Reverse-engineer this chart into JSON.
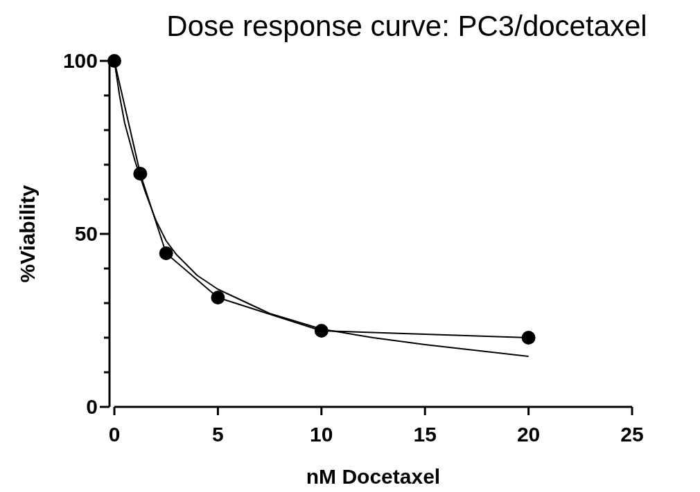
{
  "chart_data": {
    "type": "line",
    "title": "Dose response curve: PC3/docetaxel",
    "xlabel": "nM Docetaxel",
    "ylabel": "%Viability",
    "xlim": [
      0,
      25
    ],
    "xticks": [
      0,
      5,
      10,
      15,
      20,
      25
    ],
    "ylim": [
      0,
      100
    ],
    "yticks": [
      0,
      {
        "value": 10,
        "label": null
      },
      {
        "value": 20,
        "label": null
      },
      {
        "value": 30,
        "label": null
      },
      {
        "value": 40,
        "label": null
      },
      50,
      {
        "value": 60,
        "label": null
      },
      {
        "value": 70,
        "label": null
      },
      {
        "value": 80,
        "label": null
      },
      {
        "value": 90,
        "label": null
      },
      100
    ],
    "grid": false,
    "series": [
      {
        "color": "#000000",
        "marker": "circle",
        "x": [
          0,
          1.25,
          2.5,
          5,
          10,
          20
        ],
        "values": [
          100,
          67.4,
          44.4,
          31.6,
          22,
          20
        ]
      },
      {
        "color": "#000000",
        "marker": "none",
        "x": [
          0,
          0.25,
          0.5,
          1,
          1.5,
          2,
          2.5,
          3,
          4,
          5,
          7.5,
          10,
          12.5,
          15,
          17.5,
          20
        ],
        "values": [
          100,
          90,
          82,
          71,
          62,
          54,
          48,
          44,
          38,
          34,
          27,
          22.5,
          20,
          18,
          16.3,
          14.6
        ]
      }
    ]
  }
}
